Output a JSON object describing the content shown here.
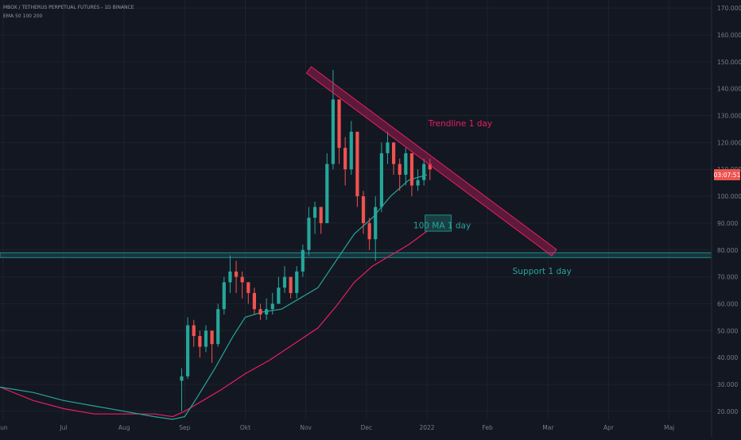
{
  "header": {
    "symbol_line": "MBOX / TETHERUS PERPETUAL FUTURES - 1D BINANCE",
    "indicator_line": "EMA 50 100 200"
  },
  "colors": {
    "background": "#131722",
    "grid": "#1e222d",
    "axis_text": "#787b86",
    "candle_up": "#26a69a",
    "candle_down": "#ef5350",
    "ma_fast": "#26a69a",
    "ma_slow": "#e91e63",
    "trendline": "#e91e63",
    "support": "#26a69a",
    "price_badge": "#ef5350"
  },
  "chart_data": {
    "type": "candlestick",
    "title": "",
    "y_axis": {
      "ticks": [
        "20.000",
        "30.000",
        "40.000",
        "50.000",
        "60.000",
        "70.000",
        "80.000",
        "90.000",
        "100.000",
        "110.000",
        "120.000",
        "130.000",
        "140.000",
        "150.000",
        "160.000",
        "170.000"
      ],
      "tick_values": [
        20,
        30,
        40,
        50,
        60,
        70,
        80,
        90,
        100,
        110,
        120,
        130,
        140,
        150,
        160,
        170
      ],
      "ylim": [
        17,
        173
      ]
    },
    "x_axis": {
      "ticks": [
        "Jun",
        "Jul",
        "Aug",
        "Sep",
        "Okt",
        "Nov",
        "Dec",
        "2022",
        "Feb",
        "Mar",
        "Apr",
        "Maj"
      ],
      "tick_months": [
        0,
        1,
        2,
        3,
        4,
        5,
        6,
        7,
        8,
        9,
        10,
        11
      ],
      "xlim_months": [
        -0.05,
        11.7
      ]
    },
    "current_price": {
      "value": 108,
      "label": "03:07:51"
    },
    "candles_t": [
      2.95,
      3.05,
      3.15,
      3.25,
      3.35,
      3.45,
      3.55,
      3.65,
      3.75,
      3.85,
      3.95,
      4.05,
      4.15,
      4.25,
      4.35,
      4.45,
      4.55,
      4.65,
      4.75,
      4.85,
      4.95,
      5.05,
      5.15,
      5.25,
      5.35,
      5.45,
      5.55,
      5.65,
      5.75,
      5.85,
      5.95,
      6.05,
      6.15,
      6.25,
      6.35,
      6.45,
      6.55,
      6.65,
      6.75,
      6.85,
      6.95,
      7.05
    ],
    "candles_close": [
      33,
      52,
      48,
      44,
      50,
      45,
      58,
      68,
      72,
      70,
      68,
      64,
      58,
      56,
      58,
      60,
      66,
      70,
      64,
      72,
      80,
      92,
      96,
      90,
      112,
      136,
      118,
      110,
      124,
      100,
      90,
      84,
      96,
      116,
      120,
      112,
      108,
      116,
      104,
      106,
      112,
      110
    ],
    "candles_high": [
      36,
      55,
      54,
      50,
      52,
      50,
      60,
      70,
      78,
      76,
      72,
      68,
      66,
      60,
      62,
      64,
      70,
      74,
      70,
      74,
      82,
      96,
      98,
      96,
      116,
      147,
      136,
      122,
      128,
      122,
      102,
      92,
      100,
      120,
      124,
      120,
      114,
      118,
      116,
      110,
      114,
      114
    ],
    "candles_low": [
      20,
      32,
      44,
      40,
      42,
      38,
      44,
      56,
      64,
      64,
      62,
      60,
      56,
      54,
      54,
      56,
      60,
      64,
      62,
      62,
      70,
      78,
      86,
      86,
      90,
      110,
      112,
      104,
      108,
      96,
      86,
      80,
      76,
      94,
      112,
      108,
      102,
      104,
      100,
      102,
      104,
      106
    ],
    "ma_fast": {
      "t": [
        -0.05,
        0.5,
        1.0,
        1.5,
        2.0,
        2.5,
        2.8,
        3.0,
        3.2,
        3.5,
        3.8,
        4.0,
        4.3,
        4.6,
        4.9,
        5.2,
        5.5,
        5.8,
        6.1,
        6.4,
        6.7,
        7.0
      ],
      "y": [
        29,
        27,
        24,
        22,
        20,
        18,
        17,
        18,
        25,
        36,
        48,
        55,
        57,
        58,
        62,
        66,
        76,
        86,
        92,
        100,
        106,
        108
      ]
    },
    "ma_slow": {
      "t": [
        -0.05,
        0.5,
        1.0,
        1.5,
        2.0,
        2.5,
        2.8,
        3.0,
        3.3,
        3.6,
        4.0,
        4.4,
        4.8,
        5.2,
        5.5,
        5.8,
        6.1,
        6.4,
        6.7,
        7.0
      ],
      "y": [
        29,
        24,
        21,
        19,
        19,
        19,
        18,
        20,
        24,
        28,
        34,
        39,
        45,
        51,
        59,
        68,
        74,
        78,
        82,
        87
      ]
    },
    "annotations": [
      {
        "name": "trendline",
        "label": "Trendline 1 day",
        "t_start": 5.05,
        "y_start": 147,
        "t_end": 9.1,
        "y_end": 79
      },
      {
        "name": "support",
        "label": "Support 1 day",
        "y_low": 77.2,
        "y_high": 79
      },
      {
        "name": "ma-zone",
        "label": "100 MA 1 day",
        "t_start": 6.97,
        "t_end": 7.4,
        "y_low": 87,
        "y_high": 93
      }
    ]
  }
}
